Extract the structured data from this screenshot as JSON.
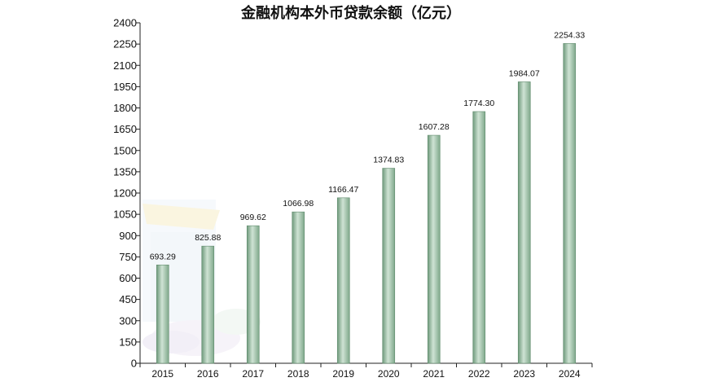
{
  "chart_data": {
    "type": "bar",
    "title": "金融机构本外币贷款余额（亿元）",
    "categories": [
      "2015",
      "2016",
      "2017",
      "2018",
      "2019",
      "2020",
      "2021",
      "2022",
      "2023",
      "2024"
    ],
    "values": [
      693.29,
      825.88,
      969.62,
      1066.98,
      1166.47,
      1374.83,
      1607.28,
      1774.3,
      1984.07,
      2254.33
    ],
    "value_labels": [
      "693.29",
      "825.88",
      "969.62",
      "1066.98",
      "1166.47",
      "1374.83",
      "1607.28",
      "1774.30",
      "1984.07",
      "2254.33"
    ],
    "y_ticks": [
      "0",
      "150",
      "300",
      "450",
      "600",
      "750",
      "900",
      "1050",
      "1200",
      "1350",
      "1500",
      "1650",
      "1800",
      "1950",
      "2100",
      "2250",
      "2400"
    ],
    "ylim": [
      0,
      2400
    ],
    "xlabel": "",
    "ylabel": "",
    "grid": false,
    "colors": {
      "bar_light": "#cfe3d4",
      "bar_mid": "#9fc1a8",
      "bar_dark": "#6f9a7c",
      "axis": "#222222"
    }
  }
}
